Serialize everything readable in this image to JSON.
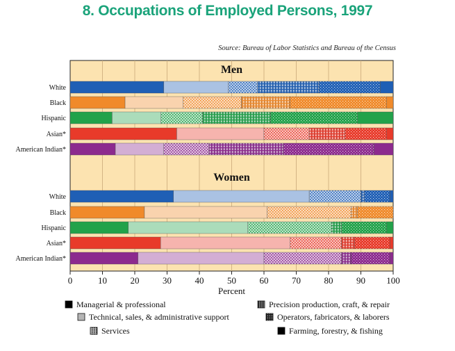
{
  "title": "8.  Occupations of Employed Persons, 1997",
  "source": "Source:  Bureau of Labor Statistics and Bureau of the Census",
  "chart_data": {
    "type": "bar",
    "stacked": true,
    "orientation": "horizontal",
    "panels": [
      {
        "title": "Men",
        "categories": [
          "White",
          "Black",
          "Hispanic",
          "Asian*",
          "American Indian*"
        ],
        "segments": [
          [
            29,
            20,
            9,
            19,
            19,
            4
          ],
          [
            17,
            18,
            18,
            15,
            30,
            2
          ],
          [
            13,
            15,
            13,
            21,
            27,
            11
          ],
          [
            33,
            27,
            14,
            11,
            13,
            2
          ],
          [
            14,
            15,
            14,
            23,
            28,
            6
          ]
        ]
      },
      {
        "title": "Women",
        "categories": [
          "White",
          "Black",
          "Hispanic",
          "Asian*",
          "American Indian*"
        ],
        "segments": [
          [
            32,
            42,
            16,
            1,
            8,
            1
          ],
          [
            23,
            38,
            26,
            2,
            11,
            0
          ],
          [
            18,
            37,
            26,
            3,
            14,
            2
          ],
          [
            28,
            40,
            16,
            4,
            11,
            1
          ],
          [
            21,
            39,
            24,
            3,
            12,
            1
          ]
        ]
      }
    ],
    "series": [
      "Managerial & professional",
      "Technical, sales, & administrative support",
      "Services",
      "Precision production, craft, & repair",
      "Operators, fabricators, & laborers",
      "Farming, forestry, & fishing"
    ],
    "xlabel": "Percent",
    "xlim": [
      0,
      100
    ],
    "xticks": [
      "0",
      "10",
      "20",
      "30",
      "40",
      "50",
      "60",
      "70",
      "80",
      "90",
      "100"
    ],
    "row_colors": [
      "#1f5fb5",
      "#f08a2a",
      "#22a24a",
      "#e83a2a",
      "#8c2a8e"
    ]
  }
}
